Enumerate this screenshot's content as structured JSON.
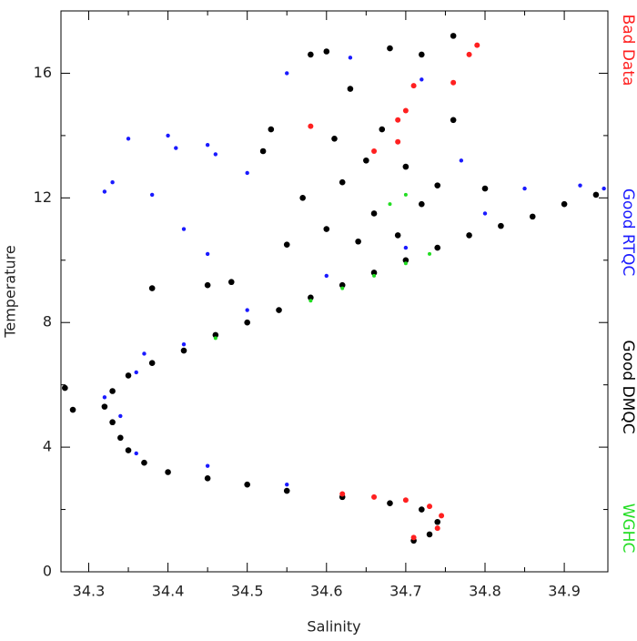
{
  "chart_data": {
    "type": "scatter",
    "x_label": "Salinity",
    "y_label": "Temperature",
    "xlim": [
      34.265,
      34.955
    ],
    "ylim": [
      0,
      18
    ],
    "xticks": [
      34.3,
      34.4,
      34.5,
      34.6,
      34.7,
      34.8,
      34.9
    ],
    "yticks": [
      0,
      4,
      8,
      12,
      16
    ],
    "xminorticks": [
      34.35,
      34.45,
      34.55,
      34.65,
      34.75,
      34.85
    ],
    "yminorticks": [
      2,
      6,
      10,
      14
    ],
    "series": [
      {
        "name": "Bad Data",
        "color": "#ff2020",
        "size": 3,
        "x": [
          34.71,
          34.74,
          34.745,
          34.73,
          34.7,
          34.66,
          34.62,
          34.79,
          34.78,
          34.76,
          34.71,
          34.7,
          34.69,
          34.66,
          34.58,
          34.69
        ],
        "values": [
          1.1,
          1.4,
          1.8,
          2.1,
          2.3,
          2.4,
          2.5,
          16.9,
          16.6,
          15.7,
          15.6,
          14.8,
          14.5,
          13.5,
          14.3,
          13.8
        ]
      },
      {
        "name": "Good RTQC",
        "color": "#1a1aff",
        "size": 2.2,
        "x": [
          34.32,
          34.33,
          34.35,
          34.4,
          34.41,
          34.38,
          34.45,
          34.46,
          34.42,
          34.45,
          34.5,
          34.55,
          34.63,
          34.72,
          34.77,
          34.85,
          34.92,
          34.95,
          34.8,
          34.7,
          34.6,
          34.5,
          34.42,
          34.36,
          34.34,
          34.36,
          34.45,
          34.55,
          34.37,
          34.32
        ],
        "values": [
          12.2,
          12.5,
          13.9,
          14.0,
          13.6,
          12.1,
          13.7,
          13.4,
          11.0,
          10.2,
          12.8,
          16.0,
          16.5,
          15.8,
          13.2,
          12.3,
          12.4,
          12.3,
          11.5,
          10.4,
          9.5,
          8.4,
          7.3,
          6.4,
          5.0,
          3.8,
          3.4,
          2.8,
          7.0,
          5.6
        ]
      },
      {
        "name": "Good DMQC",
        "color": "#000000",
        "size": 3.3,
        "x": [
          34.71,
          34.73,
          34.74,
          34.72,
          34.68,
          34.62,
          34.55,
          34.5,
          34.45,
          34.4,
          34.37,
          34.35,
          34.34,
          34.33,
          34.32,
          34.33,
          34.35,
          34.38,
          34.42,
          34.46,
          34.5,
          34.54,
          34.58,
          34.62,
          34.66,
          34.7,
          34.74,
          34.78,
          34.82,
          34.86,
          34.9,
          34.94,
          34.28,
          34.27,
          34.6,
          34.62,
          34.65,
          34.58,
          34.6,
          34.68,
          34.72,
          34.76,
          34.63,
          34.67,
          34.7,
          34.74,
          34.66,
          34.69,
          34.64,
          34.72,
          34.55,
          34.52,
          34.53,
          34.48,
          34.38,
          34.45,
          34.57,
          34.76,
          34.8,
          34.61
        ],
        "values": [
          1.0,
          1.2,
          1.6,
          2.0,
          2.2,
          2.4,
          2.6,
          2.8,
          3.0,
          3.2,
          3.5,
          3.9,
          4.3,
          4.8,
          5.3,
          5.8,
          6.3,
          6.7,
          7.1,
          7.6,
          8.0,
          8.4,
          8.8,
          9.2,
          9.6,
          10.0,
          10.4,
          10.8,
          11.1,
          11.4,
          11.8,
          12.1,
          5.2,
          5.9,
          11.0,
          12.5,
          13.2,
          16.6,
          16.7,
          16.8,
          16.6,
          17.2,
          15.5,
          14.2,
          13.0,
          12.4,
          11.5,
          10.8,
          10.6,
          11.8,
          10.5,
          13.5,
          14.2,
          9.3,
          9.1,
          9.2,
          12.0,
          14.5,
          12.3,
          13.9
        ]
      },
      {
        "name": "WGHC",
        "color": "#22dd22",
        "size": 2,
        "x": [
          34.58,
          34.62,
          34.66,
          34.7,
          34.73,
          34.68,
          34.7,
          34.46
        ],
        "values": [
          8.7,
          9.1,
          9.5,
          9.9,
          10.2,
          11.8,
          12.1,
          7.5
        ]
      }
    ]
  }
}
